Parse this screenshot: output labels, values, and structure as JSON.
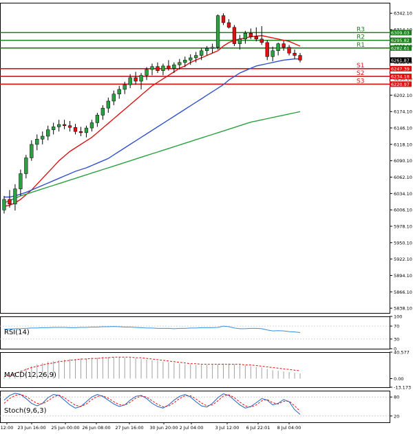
{
  "chart_data": [
    {
      "type": "candlestick",
      "panel": "price",
      "ylim": [
        5830,
        6360
      ],
      "y_ticks": [
        "6342.10",
        "6314.10",
        "6286.10",
        "6258.10",
        "6230.10",
        "6202.10",
        "6174.10",
        "6146.10",
        "6118.10",
        "6090.10",
        "6062.10",
        "6034.10",
        "6006.10",
        "5978.10",
        "5950.10",
        "5922.10",
        "5894.10",
        "5866.10",
        "5838.10"
      ],
      "x_tick_labels": [
        "12:00",
        "23 Jun 16:00",
        "25 Jun 00:00",
        "26 Jun 08:00",
        "27 Jun 16:00",
        "30 Jun 20:00",
        "2 Jul 04:00",
        "3 Jul 12:00",
        "6 Jul 22:01",
        "8 Jul 04:00"
      ],
      "current_price_label": "6261.87",
      "levels": [
        {
          "name": "R3",
          "value": 6309.03,
          "label": "6309.03",
          "color": "#1a7f1a"
        },
        {
          "name": "R2",
          "value": 6295.82,
          "label": "6295.82",
          "color": "#1a7f1a"
        },
        {
          "name": "R1",
          "value": 6282.61,
          "label": "6282.61",
          "color": "#1a7f1a"
        },
        {
          "name": "S1",
          "value": 6247.39,
          "label": "6247.39",
          "color": "#e01010"
        },
        {
          "name": "S2",
          "value": 6234.18,
          "label": "6234.18",
          "color": "#e01010"
        },
        {
          "name": "S3",
          "value": 6220.97,
          "label": "6220.97",
          "color": "#e01010"
        }
      ],
      "candles": [
        [
          6006,
          6030,
          6000,
          6024
        ],
        [
          6024,
          6040,
          6010,
          6016
        ],
        [
          6016,
          6050,
          6005,
          6042
        ],
        [
          6042,
          6075,
          6030,
          6068
        ],
        [
          6068,
          6100,
          6060,
          6095
        ],
        [
          6095,
          6125,
          6090,
          6118
        ],
        [
          6118,
          6135,
          6108,
          6127
        ],
        [
          6127,
          6140,
          6118,
          6132
        ],
        [
          6132,
          6150,
          6125,
          6143
        ],
        [
          6143,
          6155,
          6135,
          6148
        ],
        [
          6148,
          6160,
          6140,
          6152
        ],
        [
          6152,
          6160,
          6144,
          6150
        ],
        [
          6150,
          6158,
          6140,
          6147
        ],
        [
          6147,
          6153,
          6135,
          6140
        ],
        [
          6140,
          6148,
          6132,
          6138
        ],
        [
          6138,
          6150,
          6130,
          6146
        ],
        [
          6146,
          6160,
          6140,
          6155
        ],
        [
          6155,
          6172,
          6148,
          6168
        ],
        [
          6168,
          6185,
          6160,
          6180
        ],
        [
          6180,
          6198,
          6172,
          6192
        ],
        [
          6192,
          6210,
          6185,
          6204
        ],
        [
          6204,
          6218,
          6196,
          6212
        ],
        [
          6212,
          6225,
          6204,
          6220
        ],
        [
          6220,
          6238,
          6214,
          6232
        ],
        [
          6232,
          6242,
          6220,
          6226
        ],
        [
          6226,
          6240,
          6212,
          6236
        ],
        [
          6236,
          6250,
          6228,
          6246
        ],
        [
          6246,
          6256,
          6236,
          6251
        ],
        [
          6251,
          6258,
          6240,
          6244
        ],
        [
          6244,
          6256,
          6236,
          6252
        ],
        [
          6252,
          6262,
          6244,
          6248
        ],
        [
          6248,
          6258,
          6240,
          6254
        ],
        [
          6254,
          6264,
          6246,
          6258
        ],
        [
          6258,
          6268,
          6250,
          6262
        ],
        [
          6262,
          6272,
          6254,
          6266
        ],
        [
          6266,
          6276,
          6258,
          6270
        ],
        [
          6270,
          6282,
          6262,
          6278
        ],
        [
          6278,
          6286,
          6270,
          6282
        ],
        [
          6282,
          6290,
          6274,
          6284
        ],
        [
          6284,
          6340,
          6280,
          6338
        ],
        [
          6338,
          6342,
          6322,
          6326
        ],
        [
          6326,
          6332,
          6316,
          6318
        ],
        [
          6318,
          6322,
          6286,
          6290
        ],
        [
          6290,
          6305,
          6280,
          6298
        ],
        [
          6298,
          6312,
          6290,
          6308
        ],
        [
          6308,
          6316,
          6298,
          6302
        ],
        [
          6302,
          6318,
          6294,
          6298
        ],
        [
          6298,
          6320,
          6288,
          6292
        ],
        [
          6292,
          6296,
          6262,
          6268
        ],
        [
          6268,
          6285,
          6260,
          6278
        ],
        [
          6278,
          6292,
          6270,
          6290
        ],
        [
          6290,
          6295,
          6278,
          6284
        ],
        [
          6284,
          6288,
          6270,
          6274
        ],
        [
          6274,
          6280,
          6264,
          6270
        ],
        [
          6270,
          6274,
          6258,
          6262
        ]
      ],
      "moving_averages": [
        {
          "color": "#e01010",
          "values": [
            6012,
            6014,
            6018,
            6024,
            6032,
            6040,
            6050,
            6060,
            6070,
            6080,
            6090,
            6098,
            6106,
            6112,
            6118,
            6124,
            6130,
            6138,
            6146,
            6154,
            6162,
            6170,
            6178,
            6186,
            6194,
            6202,
            6210,
            6218,
            6224,
            6230,
            6236,
            6242,
            6248,
            6252,
            6258,
            6262,
            6266,
            6270,
            6274,
            6278,
            6286,
            6292,
            6296,
            6298,
            6300,
            6302,
            6303,
            6304,
            6302,
            6300,
            6298,
            6296,
            6294,
            6290,
            6286
          ]
        },
        {
          "color": "#3050d0",
          "values": [
            6028,
            6028,
            6030,
            6033,
            6036,
            6040,
            6044,
            6048,
            6052,
            6056,
            6060,
            6064,
            6068,
            6072,
            6075,
            6078,
            6082,
            6086,
            6090,
            6094,
            6100,
            6106,
            6112,
            6118,
            6124,
            6130,
            6136,
            6142,
            6148,
            6154,
            6160,
            6166,
            6172,
            6178,
            6184,
            6190,
            6196,
            6202,
            6208,
            6214,
            6220,
            6228,
            6234,
            6240,
            6244,
            6248,
            6252,
            6254,
            6256,
            6258,
            6260,
            6262,
            6263,
            6264,
            6264
          ]
        },
        {
          "color": "#2aa040",
          "values": [
            6018,
            6022,
            6026,
            6030,
            6033,
            6036,
            6039,
            6042,
            6045,
            6048,
            6051,
            6054,
            6057,
            6060,
            6063,
            6066,
            6069,
            6072,
            6075,
            6078,
            6081,
            6084,
            6087,
            6090,
            6093,
            6096,
            6099,
            6102,
            6105,
            6108,
            6111,
            6114,
            6117,
            6120,
            6123,
            6126,
            6129,
            6132,
            6135,
            6138,
            6141,
            6144,
            6147,
            6150,
            6153,
            6156,
            6158,
            6160,
            6162,
            6164,
            6166,
            6168,
            6170,
            6172,
            6174
          ]
        }
      ]
    },
    {
      "type": "line",
      "panel": "rsi",
      "label": "RSI(14)",
      "ylim": [
        0,
        100
      ],
      "y_ticks": [
        "100",
        "70",
        "30",
        "0"
      ],
      "series": [
        {
          "color": "#3090e0",
          "values": [
            60,
            61,
            62,
            62,
            63,
            64,
            64,
            65,
            65,
            66,
            66,
            66,
            65,
            65,
            66,
            66,
            67,
            67,
            68,
            68,
            69,
            68,
            67,
            67,
            66,
            65,
            64,
            64,
            63,
            63,
            63,
            62,
            63,
            63,
            64,
            64,
            65,
            65,
            65,
            66,
            70,
            68,
            64,
            62,
            62,
            63,
            63,
            62,
            58,
            55,
            56,
            55,
            53,
            52,
            50
          ]
        }
      ]
    },
    {
      "type": "bar",
      "panel": "macd",
      "label": "MACD(12,26,9)",
      "y_ticks": [
        "40.577",
        "0.00",
        "-13.173"
      ],
      "ylim": [
        -13.173,
        40.577
      ],
      "histogram": [
        2,
        5,
        8,
        12,
        16,
        19,
        22,
        24,
        26,
        27,
        28,
        29,
        30,
        30,
        31,
        31,
        32,
        32,
        33,
        33,
        33,
        33,
        32,
        32,
        31,
        30,
        29,
        28,
        27,
        26,
        25,
        24,
        23,
        22,
        22,
        21,
        21,
        21,
        21,
        22,
        23,
        23,
        22,
        21,
        20,
        19,
        18,
        17,
        15,
        13,
        12,
        11,
        10,
        9,
        8
      ],
      "signal": [
        3,
        5,
        8,
        11,
        14,
        17,
        19,
        21,
        23,
        24,
        26,
        27,
        28,
        29,
        30,
        30,
        31,
        31,
        32,
        32,
        33,
        33,
        33,
        33,
        32,
        32,
        31,
        30,
        29,
        28,
        27,
        26,
        25,
        24,
        23,
        23,
        22,
        22,
        22,
        22,
        22,
        22,
        22,
        22,
        21,
        21,
        20,
        19,
        18,
        17,
        16,
        15,
        14,
        13,
        12
      ]
    },
    {
      "type": "line",
      "panel": "stochastic",
      "label": "Stoch(9,6,3)",
      "ylim": [
        0,
        100
      ],
      "y_ticks": [
        "80",
        "20"
      ],
      "series": [
        {
          "color": "#2060c0",
          "values": [
            70,
            85,
            92,
            88,
            75,
            60,
            52,
            60,
            78,
            88,
            85,
            70,
            55,
            45,
            50,
            65,
            80,
            88,
            82,
            70,
            58,
            50,
            55,
            70,
            82,
            85,
            75,
            60,
            50,
            45,
            55,
            70,
            82,
            88,
            80,
            65,
            52,
            48,
            60,
            78,
            90,
            85,
            70,
            55,
            45,
            50,
            62,
            75,
            70,
            55,
            60,
            72,
            65,
            40,
            25
          ]
        },
        {
          "color": "#e01010",
          "values": [
            60,
            75,
            85,
            88,
            82,
            70,
            60,
            58,
            68,
            80,
            86,
            78,
            65,
            54,
            50,
            58,
            72,
            82,
            84,
            76,
            65,
            56,
            54,
            63,
            76,
            83,
            80,
            68,
            57,
            49,
            51,
            62,
            75,
            84,
            84,
            74,
            61,
            52,
            55,
            68,
            83,
            87,
            78,
            64,
            52,
            48,
            55,
            68,
            72,
            62,
            58,
            66,
            67,
            52,
            35
          ]
        }
      ]
    }
  ]
}
